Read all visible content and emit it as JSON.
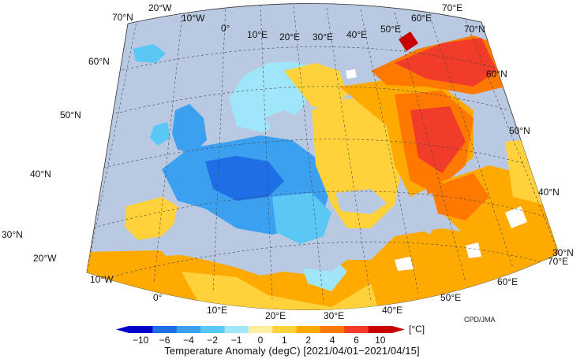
{
  "map": {
    "lat_labels_left": [
      "70°N",
      "60°N",
      "50°N",
      "40°N",
      "30°N"
    ],
    "lat_labels_right": [
      "70°N",
      "60°N",
      "50°N",
      "40°N",
      "30°N"
    ],
    "lon_labels_top": [
      "20°W",
      "10°W",
      "0°",
      "10°E",
      "20°E",
      "30°E",
      "40°E",
      "50°E",
      "60°E",
      "70°E"
    ],
    "lon_labels_bottom": [
      "20°W",
      "10°W",
      "0°",
      "10°E",
      "20°E",
      "30°E",
      "40°E",
      "50°E",
      "60°E",
      "70°E"
    ]
  },
  "colorbar": {
    "ticks": [
      "−10",
      "−6",
      "−4",
      "−2",
      "−1",
      "0",
      "1",
      "2",
      "4",
      "6",
      "10"
    ],
    "unit": "[°C]",
    "colors": [
      "#0000cc",
      "#1e6ee6",
      "#3ca0f0",
      "#5ac8f5",
      "#a0e6fa",
      "#fff0a0",
      "#ffd23c",
      "#ffaa00",
      "#ff7800",
      "#f03c28",
      "#c80000"
    ]
  },
  "credit": "CPD/JMA",
  "caption": "Temperature Anomaly (degC) [2021/04/01−2021/04/15]",
  "colors": {
    "ocean": "#b9c9e2",
    "no_data": "#ffffff"
  }
}
